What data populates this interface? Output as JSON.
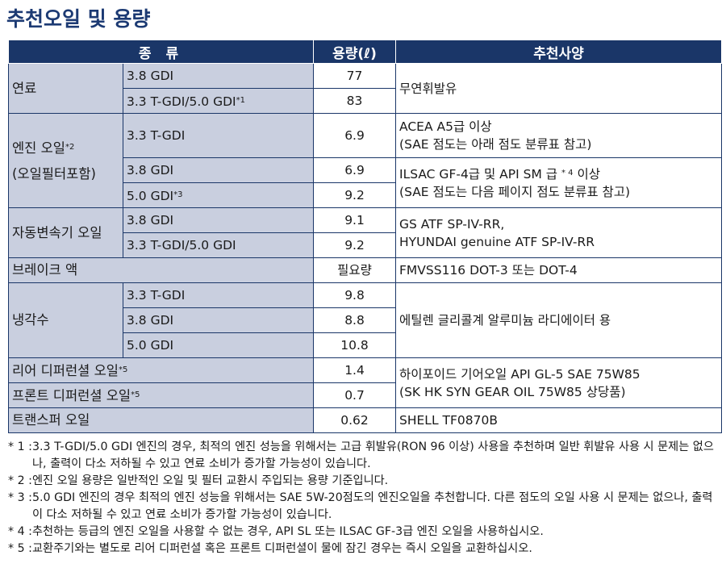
{
  "title": "추천오일 및 용량",
  "headers": {
    "type": "종 류",
    "capacity": "용량(ℓ)",
    "recommended": "추천사양"
  },
  "rows": {
    "fuel": {
      "label": "연료",
      "sub1": "3.8 GDI",
      "cap1": "77",
      "sub2": "3.3 T-GDI/5.0 GDI",
      "sub2_mark": "*1",
      "cap2": "83",
      "rec": "무연휘발유"
    },
    "engine_oil": {
      "label1": "엔진 오일",
      "label1_mark": "*2",
      "label2": "(오일필터포함)",
      "sub1": "3.3 T-GDI",
      "cap1": "6.9",
      "rec1_line1": "ACEA A5급 이상",
      "rec1_line2": "(SAE 점도는 아래 점도 분류표 참고)",
      "sub2": "3.8 GDI",
      "cap2": "6.9",
      "sub3": "5.0 GDI",
      "sub3_mark": "*3",
      "cap3": "9.2",
      "rec2_line1_a": "ILSAC GF-4급 및 API SM 급",
      "rec2_line1_mark": "* 4",
      "rec2_line1_b": "이상",
      "rec2_line2": "(SAE 점도는 다음 페이지 점도 분류표 참고)"
    },
    "transmission": {
      "label": "자동변속기 오일",
      "sub1": "3.8 GDI",
      "cap1": "9.1",
      "sub2": "3.3 T-GDI/5.0 GDI",
      "cap2": "9.2",
      "rec_line1": "GS ATF SP-IV-RR,",
      "rec_line2": "HYUNDAI genuine ATF SP-IV-RR"
    },
    "brake": {
      "label": "브레이크 액",
      "cap": "필요량",
      "rec": "FMVSS116 DOT-3 또는 DOT-4"
    },
    "coolant": {
      "label": "냉각수",
      "sub1": "3.3 T-GDI",
      "cap1": "9.8",
      "sub2": "3.8 GDI",
      "cap2": "8.8",
      "sub3": "5.0 GDI",
      "cap3": "10.8",
      "rec": "에틸렌 글리콜계 알루미늄 라디에이터 용"
    },
    "rear_diff": {
      "label": "리어 디퍼런셜 오일",
      "mark": "*5",
      "cap": "1.4"
    },
    "front_diff": {
      "label": "프론트 디퍼런셜 오일",
      "mark": "*5",
      "cap": "0.7"
    },
    "diff_rec_line1": "하이포이드 기어오일 API GL-5 SAE 75W85",
    "diff_rec_line2": "(SK HK SYN GEAR OIL 75W85 상당품)",
    "transfer": {
      "label": "트랜스퍼 오일",
      "cap": "0.62",
      "rec": "SHELL TF0870B"
    }
  },
  "notes": [
    {
      "mark": "* 1 :",
      "text": "3.3 T-GDI/5.0 GDI 엔진의 경우, 최적의 엔진 성능을 위해서는 고급 휘발유(RON 96 이상) 사용을 추천하며 일반 휘발유 사용 시 문제는 없으나, 출력이 다소 저하될 수 있고 연료 소비가 증가할 가능성이 있습니다."
    },
    {
      "mark": "* 2 :",
      "text": "엔진 오일 용량은 일반적인 오일 및 필터 교환시 주입되는 용량 기준입니다."
    },
    {
      "mark": "* 3 :",
      "text": "5.0 GDI 엔진의 경우 최적의 엔진 성능을 위해서는 SAE 5W-20점도의 엔진오일을 추천합니다. 다른 점도의 오일 사용 시 문제는 없으나, 출력이 다소 저하될 수 있고 연료 소비가 증가할 가능성이 있습니다."
    },
    {
      "mark": "* 4 :",
      "text": "추천하는 등급의 엔진 오일을 사용할 수 없는 경우, API SL 또는 ILSAC GF-3급 엔진 오일을 사용하십시오."
    },
    {
      "mark": "* 5 :",
      "text": "교환주기와는 별도로 리어 디퍼런셜 혹은 프론트 디퍼런셜이 물에 잠긴 경우는 즉시 오일을 교환하십시오."
    }
  ]
}
